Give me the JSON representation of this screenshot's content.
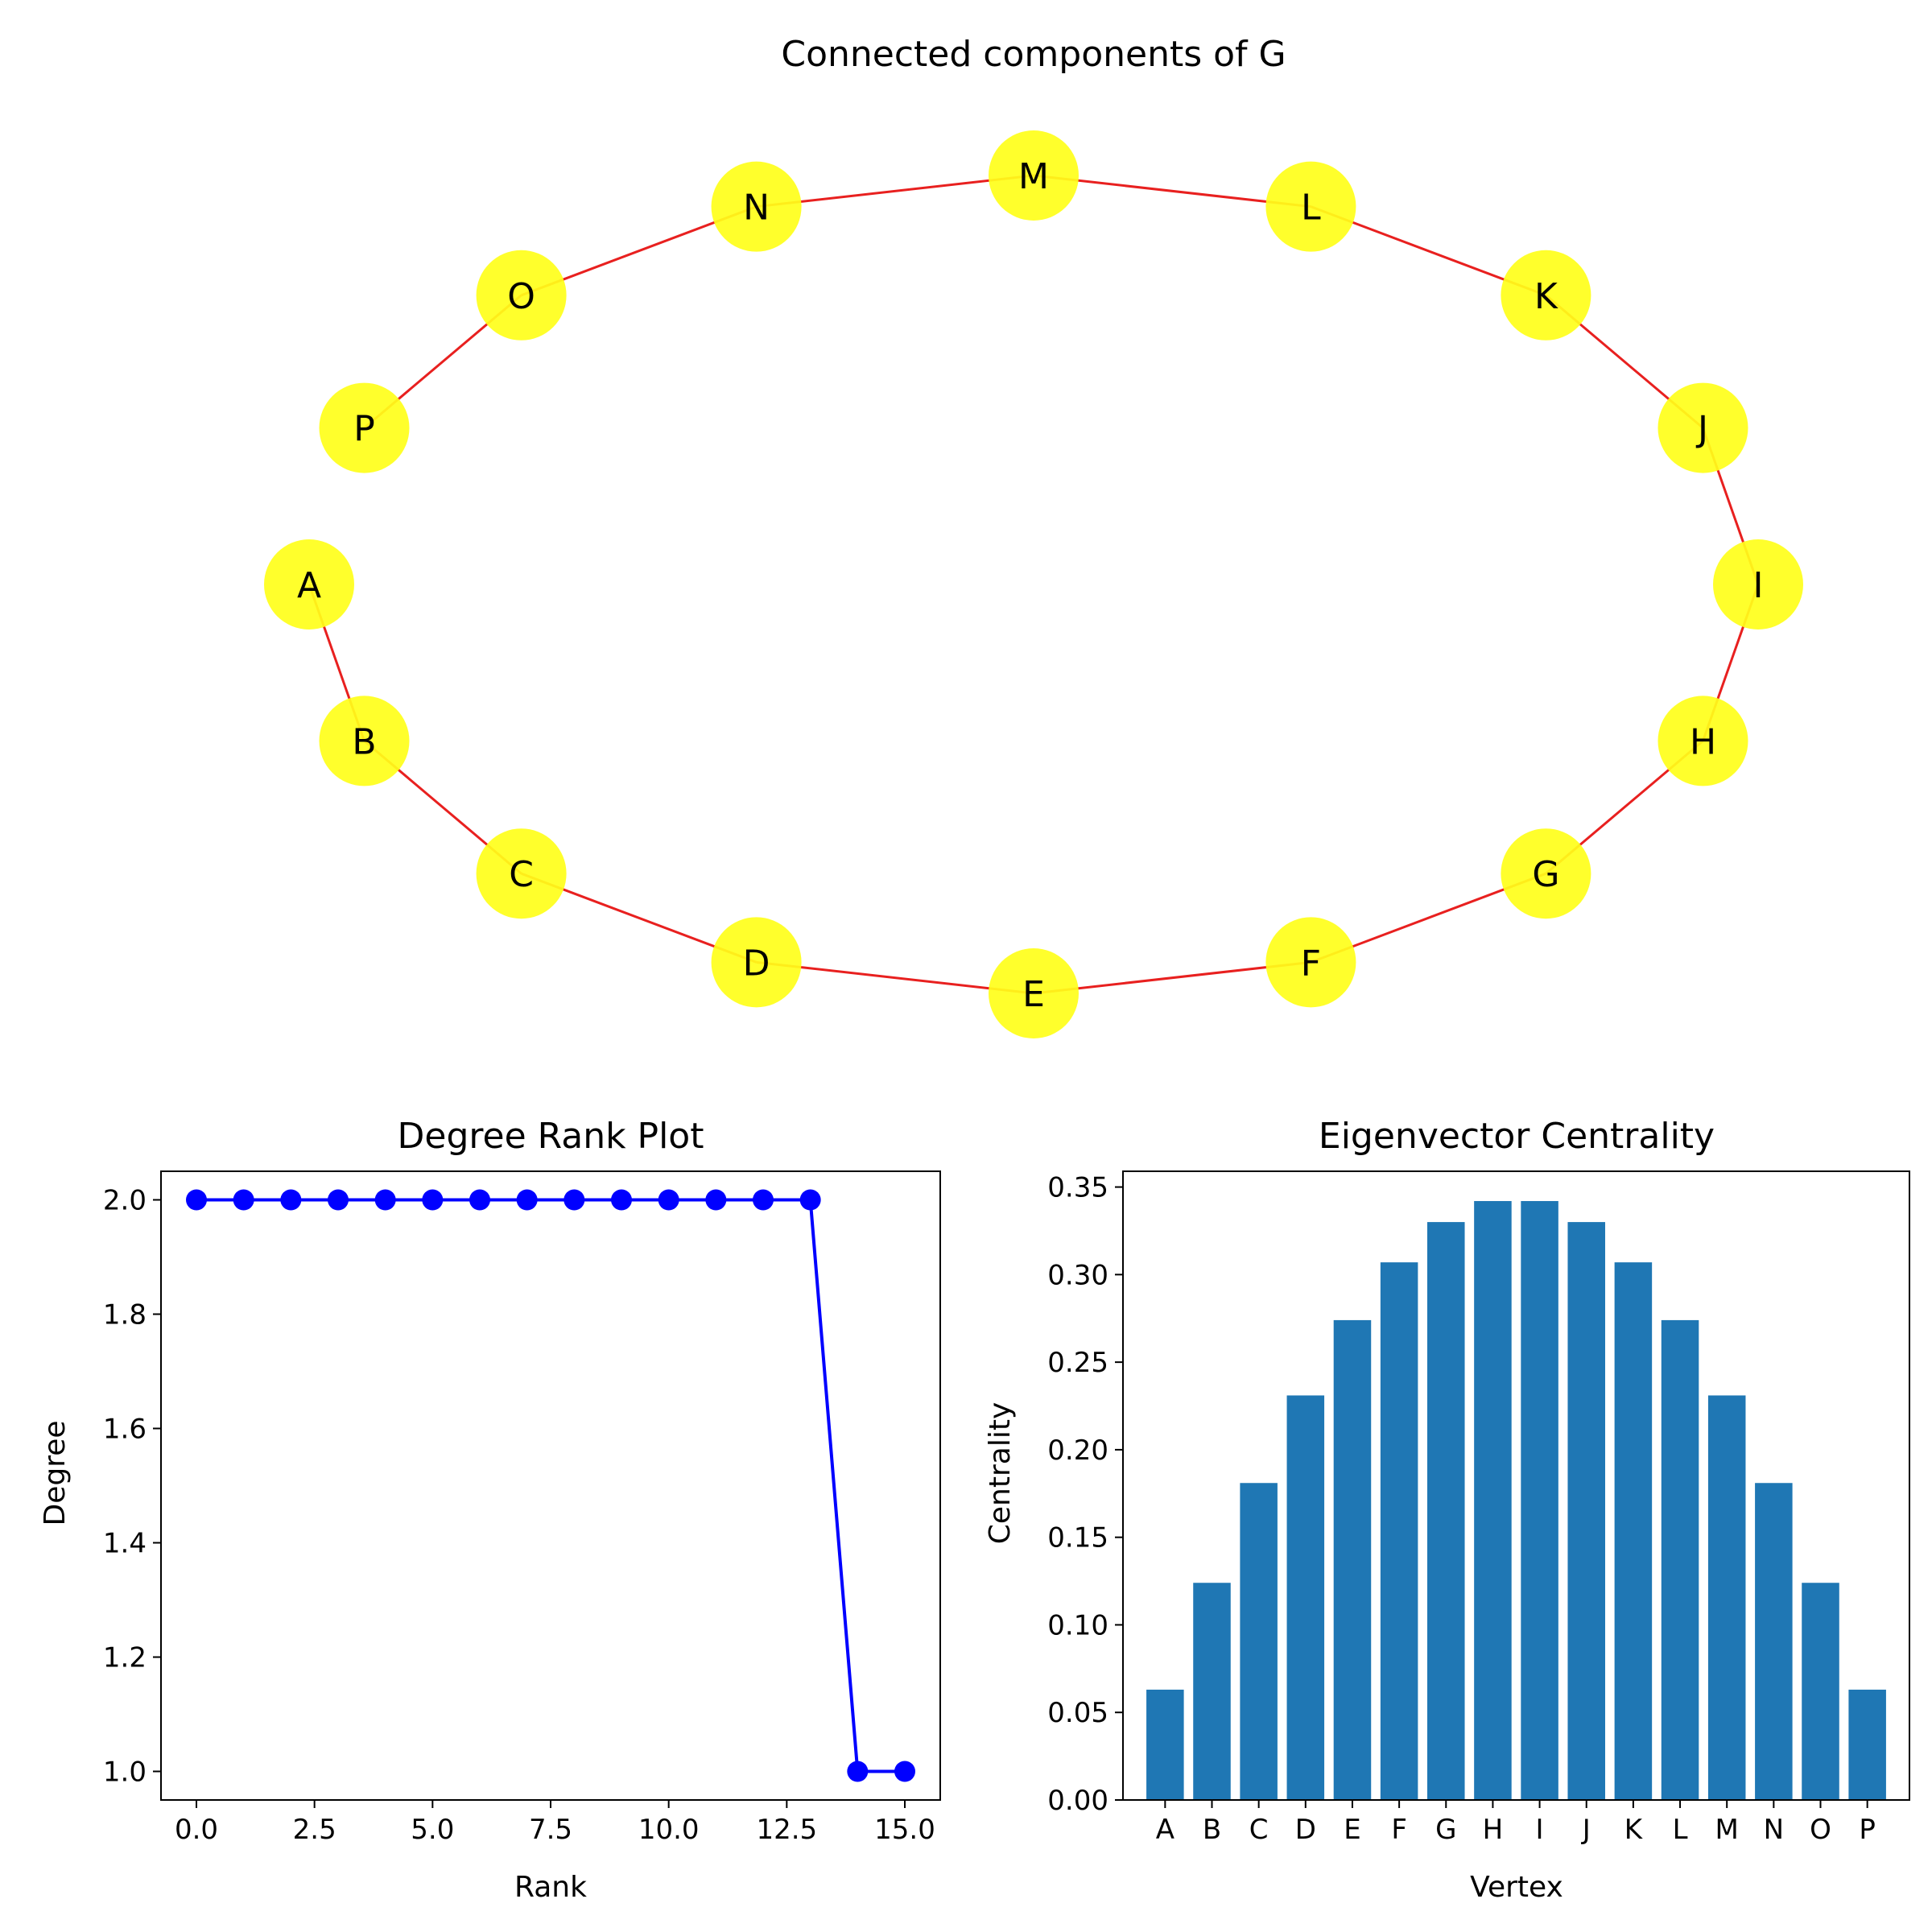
{
  "figure": {
    "background": "#ffffff"
  },
  "graph": {
    "title": "Connected components of G",
    "node_color": "#ffff1a",
    "edge_color": "#e8201f",
    "nodes": [
      "A",
      "B",
      "C",
      "D",
      "E",
      "F",
      "G",
      "H",
      "I",
      "J",
      "K",
      "L",
      "M",
      "N",
      "O",
      "P"
    ],
    "edges": [
      [
        "A",
        "B"
      ],
      [
        "B",
        "C"
      ],
      [
        "C",
        "D"
      ],
      [
        "D",
        "E"
      ],
      [
        "E",
        "F"
      ],
      [
        "F",
        "G"
      ],
      [
        "G",
        "H"
      ],
      [
        "H",
        "I"
      ],
      [
        "I",
        "J"
      ],
      [
        "J",
        "K"
      ],
      [
        "K",
        "L"
      ],
      [
        "L",
        "M"
      ],
      [
        "M",
        "N"
      ],
      [
        "N",
        "O"
      ],
      [
        "O",
        "P"
      ]
    ]
  },
  "chart_data": [
    {
      "type": "line",
      "title": "Degree Rank Plot",
      "xlabel": "Rank",
      "ylabel": "Degree",
      "color": "#0000ff",
      "marker": "circle",
      "x": [
        0,
        1,
        2,
        3,
        4,
        5,
        6,
        7,
        8,
        9,
        10,
        11,
        12,
        13,
        14,
        15
      ],
      "y": [
        2,
        2,
        2,
        2,
        2,
        2,
        2,
        2,
        2,
        2,
        2,
        2,
        2,
        2,
        1,
        1
      ],
      "xlim": [
        -0.75,
        15.75
      ],
      "ylim": [
        0.95,
        2.05
      ],
      "xticks": [
        0.0,
        2.5,
        5.0,
        7.5,
        10.0,
        12.5,
        15.0
      ],
      "xtick_labels": [
        "0.0",
        "2.5",
        "5.0",
        "7.5",
        "10.0",
        "12.5",
        "15.0"
      ],
      "yticks": [
        1.0,
        1.2,
        1.4,
        1.6,
        1.8,
        2.0
      ],
      "ytick_labels": [
        "1.0",
        "1.2",
        "1.4",
        "1.6",
        "1.8",
        "2.0"
      ],
      "grid": false
    },
    {
      "type": "bar",
      "title": "Eigenvector Centrality",
      "xlabel": "Vertex",
      "ylabel": "Centrality",
      "color": "#1f77b4",
      "categories": [
        "A",
        "B",
        "C",
        "D",
        "E",
        "F",
        "G",
        "H",
        "I",
        "J",
        "K",
        "L",
        "M",
        "N",
        "O",
        "P"
      ],
      "values": [
        0.063,
        0.124,
        0.181,
        0.231,
        0.274,
        0.307,
        0.33,
        0.342,
        0.342,
        0.33,
        0.307,
        0.274,
        0.231,
        0.181,
        0.124,
        0.063
      ],
      "ylim": [
        0,
        0.359
      ],
      "yticks": [
        0.0,
        0.05,
        0.1,
        0.15,
        0.2,
        0.25,
        0.3,
        0.35
      ],
      "ytick_labels": [
        "0.00",
        "0.05",
        "0.10",
        "0.15",
        "0.20",
        "0.25",
        "0.30",
        "0.35"
      ],
      "grid": false
    }
  ]
}
